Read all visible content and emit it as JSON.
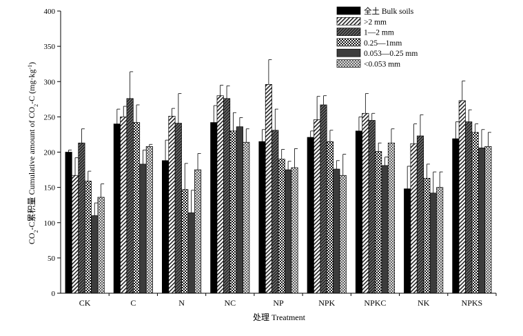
{
  "chart_data": {
    "type": "bar",
    "xlabel": "处理 Treatment",
    "ylabel_parts": [
      "CO",
      "2",
      "-C累积量 Cumulative amount of CO",
      "2",
      "-C (mg·kg",
      "-1",
      ")"
    ],
    "ylim": [
      0,
      400
    ],
    "yticks": [
      0,
      50,
      100,
      150,
      200,
      250,
      300,
      350,
      400
    ],
    "ytick_labels": [
      "0",
      "50",
      "100",
      "150",
      "200",
      "250",
      "300",
      "350",
      "400"
    ],
    "categories": [
      "CK",
      "C",
      "N",
      "NC",
      "NP",
      "NPK",
      "NPKC",
      "NK",
      "NPKS"
    ],
    "legend_position": "top-right",
    "series": [
      {
        "name": "全土 Bulk soils",
        "pattern": "solid",
        "values": [
          200,
          240,
          188,
          242,
          215,
          221,
          230,
          148,
          219
        ],
        "errors": [
          3,
          21,
          29,
          24,
          17,
          9,
          20,
          32,
          24
        ]
      },
      {
        "name": ">2 mm",
        "pattern": "diag",
        "values": [
          167,
          250,
          251,
          280,
          296,
          246,
          255,
          212,
          273
        ],
        "errors": [
          25,
          15,
          11,
          15,
          35,
          33,
          28,
          28,
          28
        ]
      },
      {
        "name": "1—2 mm",
        "pattern": "dense-diag",
        "values": [
          213,
          276,
          241,
          276,
          231,
          267,
          245,
          223,
          243
        ],
        "errors": [
          20,
          38,
          42,
          18,
          30,
          13,
          10,
          30,
          17
        ]
      },
      {
        "name": "0.25—1mm",
        "pattern": "checker",
        "values": [
          159,
          242,
          147,
          230,
          190,
          215,
          201,
          163,
          228
        ],
        "errors": [
          14,
          25,
          37,
          26,
          14,
          16,
          12,
          20,
          12
        ]
      },
      {
        "name": "0.053—0.25 mm",
        "pattern": "dark",
        "values": [
          110,
          183,
          114,
          236,
          175,
          176,
          181,
          142,
          206
        ],
        "errors": [
          18,
          20,
          32,
          13,
          12,
          12,
          12,
          30,
          26
        ]
      },
      {
        "name": "<0.053 mm",
        "pattern": "crosshatch",
        "values": [
          136,
          208,
          175,
          214,
          178,
          167,
          213,
          150,
          208
        ],
        "errors": [
          19,
          3,
          23,
          19,
          27,
          30,
          20,
          22,
          20
        ]
      }
    ]
  }
}
